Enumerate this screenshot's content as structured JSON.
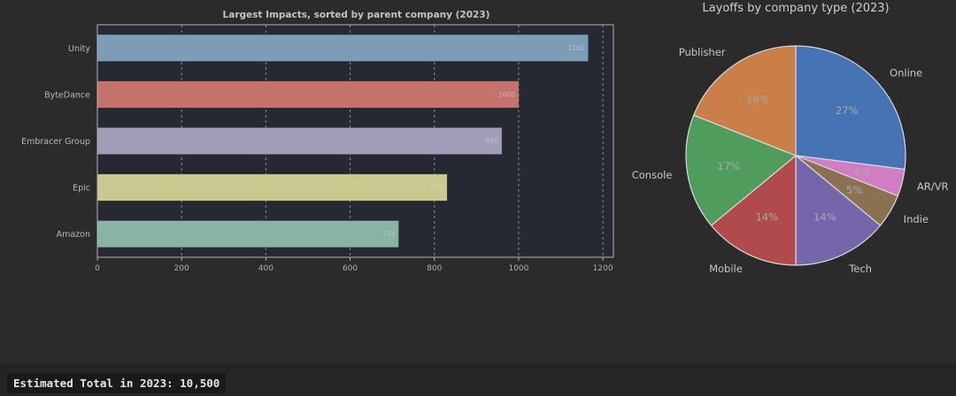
{
  "page": {
    "background": "#2b2b2b",
    "footer": {
      "text": "Estimated Total in 2023: 10,500"
    }
  },
  "chart_data": [
    {
      "type": "bar",
      "orientation": "horizontal",
      "title": "Largest Impacts, sorted by parent company (2023)",
      "categories": [
        "Unity",
        "ByteDance",
        "Embracer Group",
        "Epic",
        "Amazon"
      ],
      "values": [
        1165,
        1000,
        960,
        830,
        715
      ],
      "bar_colors": [
        "#7d9cb5",
        "#c5726b",
        "#a19cb8",
        "#cbc88f",
        "#89b3a4"
      ],
      "xlabel": "",
      "ylabel": "",
      "xlim": [
        0,
        1225
      ],
      "x_ticks": [
        0,
        200,
        400,
        600,
        800,
        1000,
        1200
      ],
      "grid": "dashed-vertical",
      "legend": "none",
      "plot_bg": "#262932",
      "frame_color": "#b5b5b5",
      "gridline_color": "rgba(255,255,255,0.45)",
      "tick_label_color": "#b0b0b0",
      "category_label_color": "#b8b8b8",
      "value_label_color": "#d3d8dd"
    },
    {
      "type": "pie",
      "title": "Layoffs by company type (2023)",
      "start_angle": "top",
      "direction": "clockwise",
      "slices": [
        {
          "label": "Online",
          "percent": 27,
          "color": "#4573b4"
        },
        {
          "label": "AR/VR",
          "percent": 4,
          "color": "#d07dc4"
        },
        {
          "label": "Indie",
          "percent": 5,
          "color": "#8b7152"
        },
        {
          "label": "Tech",
          "percent": 14,
          "color": "#7566ac"
        },
        {
          "label": "Mobile",
          "percent": 14,
          "color": "#b04a4d"
        },
        {
          "label": "Console",
          "percent": 17,
          "color": "#4f9c5d"
        },
        {
          "label": "Publisher",
          "percent": 19,
          "color": "#c97f47"
        }
      ],
      "stroke_color": "#d9d9d9",
      "label_color": "#c6c6c6",
      "pct_label_color": "#a5aaad",
      "legend": "none"
    }
  ]
}
